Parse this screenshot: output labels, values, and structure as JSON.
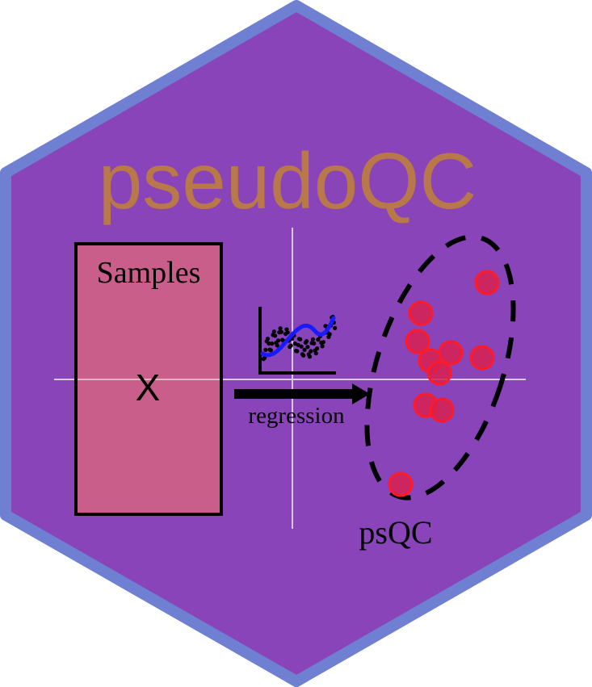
{
  "logo": {
    "title": "pseudoQC",
    "box_label": "Samples",
    "box_symbol": "X",
    "arrow_label": "regression",
    "cluster_label": "psQC"
  },
  "colors": {
    "hex_fill": "#8844b8",
    "hex_border": "#6f80d2",
    "title": "#b9784a",
    "box_fill": "#cc6088",
    "points": "#d8204f",
    "curve": "#1a1aff"
  }
}
